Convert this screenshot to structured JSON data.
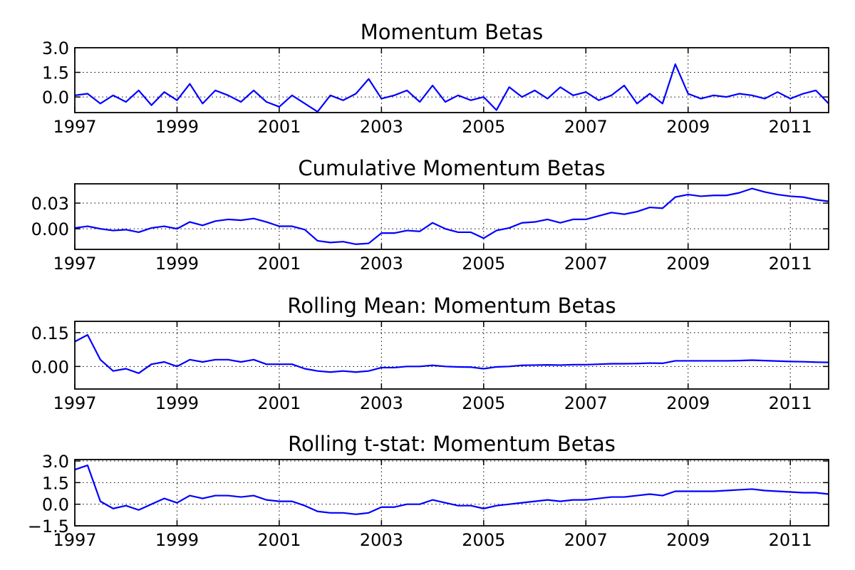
{
  "chart_data": [
    {
      "type": "line",
      "title": "Momentum Betas",
      "color": "#0000ff",
      "grid": true,
      "x": [
        1997,
        1997.25,
        1997.5,
        1997.75,
        1998,
        1998.25,
        1998.5,
        1998.75,
        1999,
        1999.25,
        1999.5,
        1999.75,
        2000,
        2000.25,
        2000.5,
        2000.75,
        2001,
        2001.25,
        2001.5,
        2001.75,
        2002,
        2002.25,
        2002.5,
        2002.75,
        2003,
        2003.25,
        2003.5,
        2003.75,
        2004,
        2004.25,
        2004.5,
        2004.75,
        2005,
        2005.25,
        2005.5,
        2005.75,
        2006,
        2006.25,
        2006.5,
        2006.75,
        2007,
        2007.25,
        2007.5,
        2007.75,
        2008,
        2008.25,
        2008.5,
        2008.75,
        2009,
        2009.25,
        2009.5,
        2009.75,
        2010,
        2010.25,
        2010.5,
        2010.75,
        2011,
        2011.25,
        2011.5,
        2011.75
      ],
      "values": [
        0.1,
        0.2,
        -0.4,
        0.1,
        -0.3,
        0.4,
        -0.5,
        0.3,
        -0.2,
        0.8,
        -0.4,
        0.4,
        0.1,
        -0.3,
        0.4,
        -0.3,
        -0.6,
        0.1,
        -0.4,
        -0.9,
        0.1,
        -0.2,
        0.2,
        1.1,
        -0.1,
        0.1,
        0.4,
        -0.3,
        0.7,
        -0.3,
        0.1,
        -0.2,
        0.0,
        -0.8,
        0.6,
        0.0,
        0.4,
        -0.1,
        0.6,
        0.1,
        0.3,
        -0.2,
        0.1,
        0.7,
        -0.4,
        0.2,
        -0.4,
        2.0,
        0.2,
        -0.1,
        0.1,
        0.0,
        0.2,
        0.1,
        -0.1,
        0.3,
        -0.1,
        0.2,
        0.4,
        -0.4
      ],
      "xlim": [
        1997,
        2011.75
      ],
      "xticks": [
        1997,
        1999,
        2001,
        2003,
        2005,
        2007,
        2009,
        2011
      ],
      "ylim": [
        -0.95,
        3.0
      ],
      "yticks": [
        {
          "value": 0,
          "label": "0.0"
        },
        {
          "value": 1.5,
          "label": "1.5"
        },
        {
          "value": 3,
          "label": "3.0"
        }
      ]
    },
    {
      "type": "line",
      "title": "Cumulative Momentum Betas",
      "color": "#0000ff",
      "grid": true,
      "x": [
        1997,
        1997.25,
        1997.5,
        1997.75,
        1998,
        1998.25,
        1998.5,
        1998.75,
        1999,
        1999.25,
        1999.5,
        1999.75,
        2000,
        2000.25,
        2000.5,
        2000.75,
        2001,
        2001.25,
        2001.5,
        2001.75,
        2002,
        2002.25,
        2002.5,
        2002.75,
        2003,
        2003.25,
        2003.5,
        2003.75,
        2004,
        2004.25,
        2004.5,
        2004.75,
        2005,
        2005.25,
        2005.5,
        2005.75,
        2006,
        2006.25,
        2006.5,
        2006.75,
        2007,
        2007.25,
        2007.5,
        2007.75,
        2008,
        2008.25,
        2008.5,
        2008.75,
        2009,
        2009.25,
        2009.5,
        2009.75,
        2010,
        2010.25,
        2010.5,
        2010.75,
        2011,
        2011.25,
        2011.5,
        2011.75
      ],
      "values": [
        0.001,
        0.003,
        0.0,
        -0.002,
        -0.001,
        -0.004,
        0.001,
        0.003,
        0.0,
        0.008,
        0.004,
        0.009,
        0.011,
        0.01,
        0.012,
        0.008,
        0.003,
        0.003,
        -0.001,
        -0.014,
        -0.016,
        -0.015,
        -0.018,
        -0.017,
        -0.005,
        -0.005,
        -0.002,
        -0.003,
        0.007,
        0.0,
        -0.004,
        -0.004,
        -0.011,
        -0.002,
        0.001,
        0.007,
        0.008,
        0.011,
        0.007,
        0.011,
        0.011,
        0.015,
        0.019,
        0.017,
        0.02,
        0.025,
        0.024,
        0.037,
        0.04,
        0.038,
        0.039,
        0.039,
        0.042,
        0.047,
        0.043,
        0.04,
        0.038,
        0.037,
        0.034,
        0.032
      ],
      "xlim": [
        1997,
        2011.75
      ],
      "xticks": [
        1997,
        1999,
        2001,
        2003,
        2005,
        2007,
        2009,
        2011
      ],
      "ylim": [
        -0.024,
        0.0525
      ],
      "yticks": [
        {
          "value": 0,
          "label": "0.00"
        },
        {
          "value": 0.03,
          "label": "0.03"
        }
      ]
    },
    {
      "type": "line",
      "title": "Rolling Mean: Momentum Betas",
      "color": "#0000ff",
      "grid": true,
      "x": [
        1997,
        1997.25,
        1997.5,
        1997.75,
        1998,
        1998.25,
        1998.5,
        1998.75,
        1999,
        1999.25,
        1999.5,
        1999.75,
        2000,
        2000.25,
        2000.5,
        2000.75,
        2001,
        2001.25,
        2001.5,
        2001.75,
        2002,
        2002.25,
        2002.5,
        2002.75,
        2003,
        2003.25,
        2003.5,
        2003.75,
        2004,
        2004.25,
        2004.5,
        2004.75,
        2005,
        2005.25,
        2005.5,
        2005.75,
        2006,
        2006.25,
        2006.5,
        2006.75,
        2007,
        2007.25,
        2007.5,
        2007.75,
        2008,
        2008.25,
        2008.5,
        2008.75,
        2009,
        2009.25,
        2009.5,
        2009.75,
        2010,
        2010.25,
        2010.5,
        2010.75,
        2011,
        2011.25,
        2011.5,
        2011.75
      ],
      "values": [
        0.11,
        0.14,
        0.03,
        -0.02,
        -0.01,
        -0.03,
        0.01,
        0.02,
        0.0,
        0.03,
        0.02,
        0.03,
        0.03,
        0.02,
        0.03,
        0.01,
        0.01,
        0.01,
        -0.01,
        -0.02,
        -0.025,
        -0.02,
        -0.025,
        -0.02,
        -0.005,
        -0.005,
        0.0,
        0.0,
        0.005,
        0.0,
        -0.002,
        -0.003,
        -0.01,
        -0.002,
        0.0,
        0.005,
        0.006,
        0.007,
        0.006,
        0.008,
        0.008,
        0.01,
        0.012,
        0.012,
        0.013,
        0.015,
        0.014,
        0.025,
        0.025,
        0.025,
        0.025,
        0.025,
        0.026,
        0.028,
        0.026,
        0.024,
        0.022,
        0.021,
        0.019,
        0.018
      ],
      "xlim": [
        1997,
        2011.75
      ],
      "xticks": [
        1997,
        1999,
        2001,
        2003,
        2005,
        2007,
        2009,
        2011
      ],
      "ylim": [
        -0.1,
        0.2
      ],
      "yticks": [
        {
          "value": 0,
          "label": "0.00"
        },
        {
          "value": 0.15,
          "label": "0.15"
        }
      ]
    },
    {
      "type": "line",
      "title": "Rolling t-stat: Momentum Betas",
      "color": "#0000ff",
      "grid": true,
      "x": [
        1997,
        1997.25,
        1997.5,
        1997.75,
        1998,
        1998.25,
        1998.5,
        1998.75,
        1999,
        1999.25,
        1999.5,
        1999.75,
        2000,
        2000.25,
        2000.5,
        2000.75,
        2001,
        2001.25,
        2001.5,
        2001.75,
        2002,
        2002.25,
        2002.5,
        2002.75,
        2003,
        2003.25,
        2003.5,
        2003.75,
        2004,
        2004.25,
        2004.5,
        2004.75,
        2005,
        2005.25,
        2005.5,
        2005.75,
        2006,
        2006.25,
        2006.5,
        2006.75,
        2007,
        2007.25,
        2007.5,
        2007.75,
        2008,
        2008.25,
        2008.5,
        2008.75,
        2009,
        2009.25,
        2009.5,
        2009.75,
        2010,
        2010.25,
        2010.5,
        2010.75,
        2011,
        2011.25,
        2011.5,
        2011.75
      ],
      "values": [
        2.4,
        2.7,
        0.2,
        -0.3,
        -0.1,
        -0.4,
        0.0,
        0.4,
        0.1,
        0.6,
        0.4,
        0.6,
        0.6,
        0.5,
        0.6,
        0.3,
        0.2,
        0.2,
        -0.1,
        -0.5,
        -0.6,
        -0.6,
        -0.7,
        -0.6,
        -0.2,
        -0.2,
        0.0,
        0.0,
        0.3,
        0.1,
        -0.1,
        -0.1,
        -0.3,
        -0.1,
        0.0,
        0.1,
        0.2,
        0.3,
        0.2,
        0.3,
        0.3,
        0.4,
        0.5,
        0.5,
        0.6,
        0.7,
        0.6,
        0.9,
        0.9,
        0.9,
        0.9,
        0.95,
        1.0,
        1.05,
        0.95,
        0.9,
        0.85,
        0.8,
        0.8,
        0.7
      ],
      "xlim": [
        1997,
        2011.75
      ],
      "xticks": [
        1997,
        1999,
        2001,
        2003,
        2005,
        2007,
        2009,
        2011
      ],
      "ylim": [
        -1.5,
        3.1
      ],
      "yticks": [
        {
          "value": -1.5,
          "label": "−1.5"
        },
        {
          "value": 0,
          "label": "0.0"
        },
        {
          "value": 1.5,
          "label": "1.5"
        },
        {
          "value": 3,
          "label": "3.0"
        }
      ]
    }
  ]
}
